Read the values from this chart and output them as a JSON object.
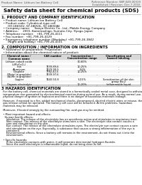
{
  "title": "Safety data sheet for chemical products (SDS)",
  "header_left": "Product Name: Lithium Ion Battery Cell",
  "header_right_line1": "Reference Number: SBP-049-00019",
  "header_right_line2": "Established / Revision: Dec.7.2016",
  "section1_title": "1. PRODUCT AND COMPANY IDENTIFICATION",
  "section1_lines": [
    "  • Product name: Lithium Ion Battery Cell",
    "  • Product code: Cylindrical-type cell",
    "       (SY-18650U, SY-18650L, SY-18650A)",
    "  • Company name:     Sanyo Electric Co., Ltd., Mobile Energy Company",
    "  • Address:     2001, Kamimashige, Sumoto-City, Hyogo, Japan",
    "  • Telephone number:   +81-799-26-4111",
    "  • Fax number:  +81-799-26-4129",
    "  • Emergency telephone number (Weekday) +81-799-26-3842",
    "       (Night and holiday) +81-799-26-4101"
  ],
  "section2_title": "2. COMPOSITION / INFORMATION ON INGREDIENTS",
  "section2_sub1": "  • Substance or preparation: Preparation",
  "section2_sub2": "  • Information about the chemical nature of product:",
  "col_labels": [
    "Chemical name /",
    "CAS number",
    "Concentration /",
    "Classification and"
  ],
  "col_labels2": [
    "Common name",
    "",
    "Concentration range",
    "hazard labeling"
  ],
  "rows": [
    [
      "Lithium cobalt oxide",
      "-",
      "30-60%",
      "-"
    ],
    [
      "(LiMn₂CoO₄)",
      "",
      "",
      ""
    ],
    [
      "Iron",
      "7439-89-6",
      "10-25%",
      "-"
    ],
    [
      "Aluminum",
      "7429-90-5",
      "2-6%",
      "-"
    ],
    [
      "Graphite",
      "7782-42-5",
      "10-25%",
      "-"
    ],
    [
      "(Metal in graphite)",
      "7439-97-6",
      "",
      ""
    ],
    [
      "(Al-Mn in graphite)",
      "",
      "",
      ""
    ],
    [
      "Copper",
      "7440-50-8",
      "5-15%",
      "Sensitization of the skin"
    ],
    [
      "",
      "",
      "",
      "group No.2"
    ],
    [
      "Organic electrolyte",
      "-",
      "10-20%",
      "Inflammable liquid"
    ]
  ],
  "section3_title": "3 HAZARDS IDENTIFICATION",
  "s3_lines": [
    "  For the battery cell, chemical materials are stored in a hermetically sealed metal case, designed to withstand",
    "  temperature rise generated by electrochemical reaction during normal use. As a result, during normal use, there is no",
    "  physical danger of ignition or explosion and there is no danger of hazardous materials leakage.",
    "",
    "  However, if exposed to a fire, added mechanical shocks, decomposed, shorted electric wires or misuse, the",
    "  gas release cannot be operated. The battery cell case will be breached. At fire problems, hazardous",
    "  materials may be released.",
    "",
    "  Moreover, if heated strongly by the surrounding fire, acid gas may be emitted.",
    "",
    "  • Most important hazard and effects:",
    "    Human health effects:",
    "      Inhalation: The release of the electrolyte has an anesthesia action and stimulates in respiratory tract.",
    "      Skin contact: The release of the electrolyte stimulates a skin. The electrolyte skin contact causes a",
    "      sore and stimulation on the skin.",
    "      Eye contact: The release of the electrolyte stimulates eyes. The electrolyte eye contact causes a sore",
    "      and stimulation on the eye. Especially, a substance that causes a strong inflammation of the eye is",
    "      contained.",
    "      Environmental effects: Since a battery cell remains in the environment, do not throw out it into the",
    "      environment.",
    "",
    "  • Specific hazards:",
    "      If the electrolyte contacts with water, it will generate detrimental hydrogen fluoride.",
    "      Since the used electrolyte is inflammable liquid, do not bring close to fire."
  ],
  "bg_color": "#ffffff"
}
